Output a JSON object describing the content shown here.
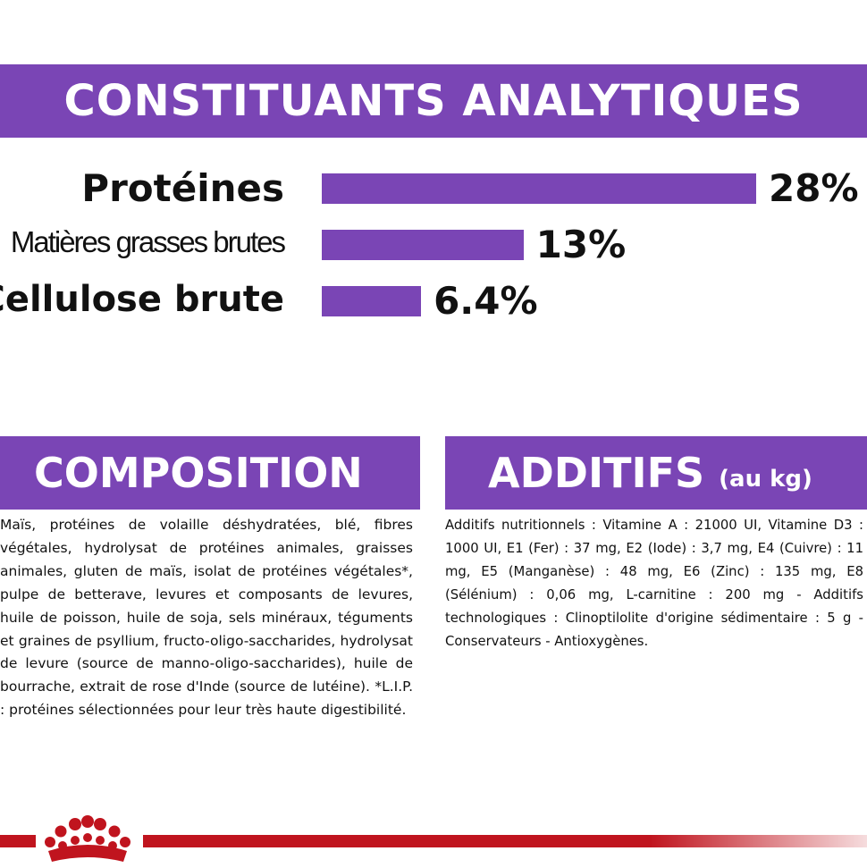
{
  "analytic": {
    "title": "CONSTITUANTS ANALYTIQUES",
    "items": [
      {
        "label": "Protéines",
        "value_text": "28%",
        "value": 28
      },
      {
        "label": "Matières grasses brutes",
        "value_text": "13%",
        "value": 13
      },
      {
        "label": "Cellulose brute",
        "value_text": "6.4%",
        "value": 6.4
      }
    ]
  },
  "composition": {
    "title": "COMPOSITION",
    "text": "Maïs, protéines de volaille déshydratées, blé, fibres végétales, hydrolysat de protéines animales, graisses animales, gluten de maïs, isolat de protéines végétales*, pulpe de betterave, levures et composants de levures, huile de poisson, huile de soja, sels minéraux, téguments et graines de psyllium, fructo-oligo-saccharides, hydrolysat de levure (source de manno-oligo-saccharides), huile de bourrache, extrait de rose d'Inde (source de lutéine). *L.I.P. : protéines sélectionnées pour leur très haute digestibilité."
  },
  "additifs": {
    "title": "ADDITIFS",
    "subtitle": "(au kg)",
    "text": "Additifs nutritionnels : Vitamine A : 21000 UI, Vitamine D3 : 1000 UI, E1 (Fer) : 37 mg, E2 (Iode) : 3,7 mg, E4 (Cuivre) : 11 mg, E5 (Manganèse) : 48 mg, E6 (Zinc) : 135 mg, E8 (Sélénium) : 0,06 mg, L-carnitine : 200 mg - Additifs technologiques : Clinoptilolite d'origine sédimentaire : 5 g - Conservateurs - Antioxygènes."
  },
  "colors": {
    "accent": "#7a45b5",
    "brand_red": "#c0141e"
  },
  "icons": {
    "logo": "royal-canin-crown-icon"
  }
}
